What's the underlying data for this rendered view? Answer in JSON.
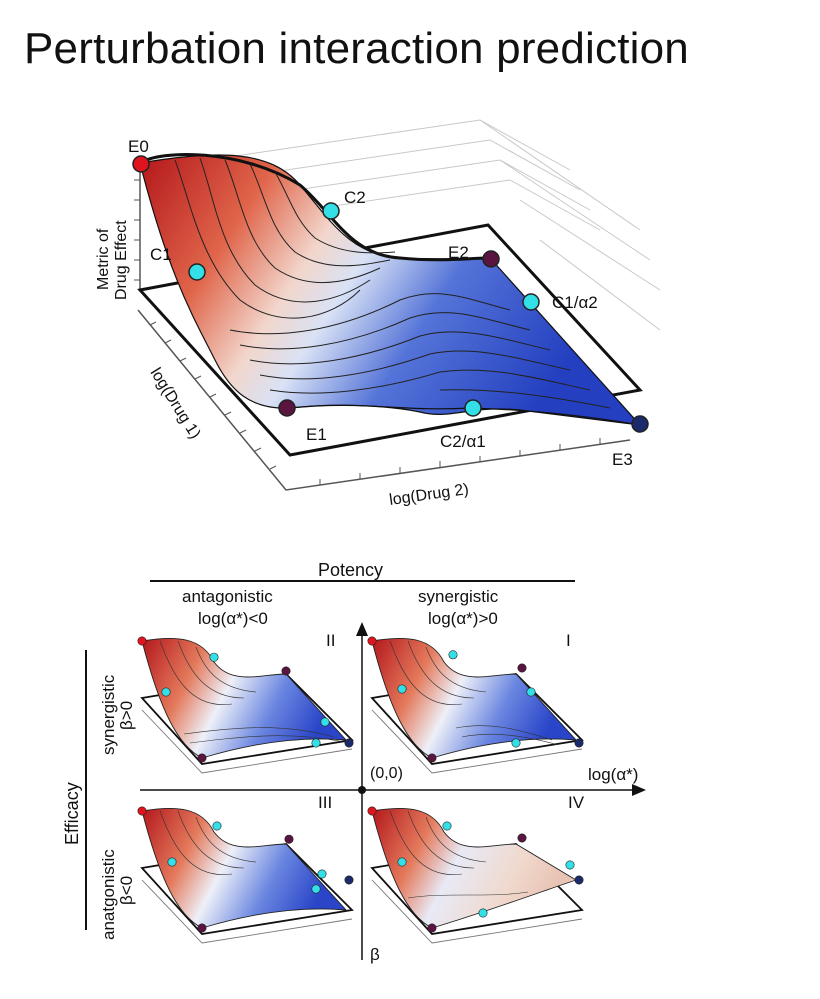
{
  "title": "Perturbation interaction prediction",
  "main_surface": {
    "z_axis_label_1": "Metric of",
    "z_axis_label_2": "Drug Effect",
    "x_axis_label": "log(Drug 1)",
    "y_axis_label": "log(Drug 2)",
    "points": {
      "e0": "E0",
      "e1": "E1",
      "e2": "E2",
      "e3": "E3",
      "c1": "C1",
      "c2": "C2",
      "c1a2": "C1/α2",
      "c2a1": "C2/α1"
    }
  },
  "quadrants": {
    "potency_label": "Potency",
    "efficacy_label": "Efficacy",
    "antagonistic_header_1": "antagonistic",
    "antagonistic_header_2": "log(α*)<0",
    "synergistic_header_1": "synergistic",
    "synergistic_header_2": "log(α*)>0",
    "row_synergistic_1": "synergistic",
    "row_synergistic_2": "β>0",
    "row_antagonistic_1": "anatgonistic",
    "row_antagonistic_2": "β<0",
    "origin": "(0,0)",
    "x_axis": "log(α*)",
    "y_axis": "β",
    "q1": "I",
    "q2": "II",
    "q3": "III",
    "q4": "IV"
  },
  "colors": {
    "red": "#c0281e",
    "blue": "#2a45c8",
    "cyan": "#33e0e8",
    "purple": "#5a1440",
    "navy": "#1a2a6a"
  }
}
